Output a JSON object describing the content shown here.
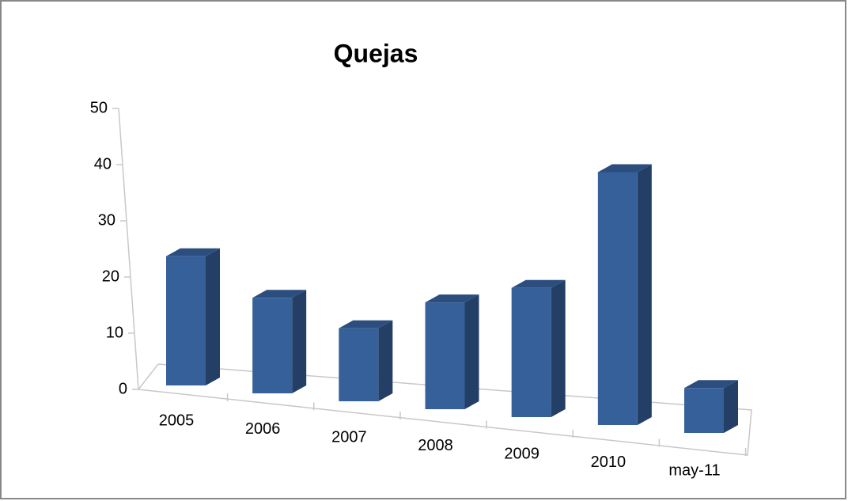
{
  "chart_data": {
    "type": "bar",
    "title": "Quejas",
    "categories": [
      "2005",
      "2006",
      "2007",
      "2008",
      "2009",
      "2010",
      "may-11"
    ],
    "values": [
      23,
      17,
      13,
      19,
      23,
      45,
      8
    ],
    "color": "#35609a",
    "ylim": [
      0,
      50
    ],
    "yticks": [
      0,
      10,
      20,
      30,
      40,
      50
    ],
    "grid": false
  }
}
